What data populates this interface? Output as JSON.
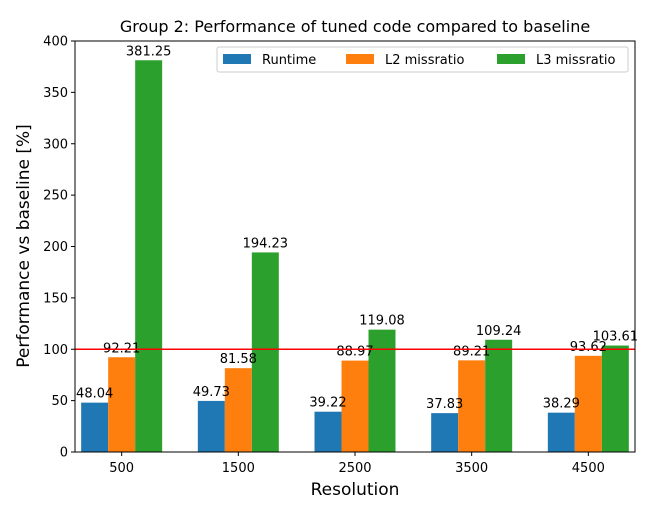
{
  "chart_data": {
    "type": "bar",
    "title": "Group 2: Performance of tuned code compared to baseline",
    "xlabel": "Resolution",
    "ylabel": "Performance vs baseline [%]",
    "categories": [
      "500",
      "1500",
      "2500",
      "3500",
      "4500"
    ],
    "ylim": [
      0,
      400
    ],
    "yticks": [
      0,
      50,
      100,
      150,
      200,
      250,
      300,
      350,
      400
    ],
    "series": [
      {
        "name": "Runtime",
        "color": "#1f77b4",
        "values": [
          48.04,
          49.73,
          39.22,
          37.83,
          38.29
        ],
        "labels": [
          "48.04",
          "49.73",
          "39.22",
          "37.83",
          "38.29"
        ]
      },
      {
        "name": "L2 missratio",
        "color": "#ff7f0e",
        "values": [
          92.21,
          81.58,
          88.97,
          89.21,
          93.62
        ],
        "labels": [
          "92.21",
          "81.58",
          "88.97",
          "89.21",
          "93.62"
        ]
      },
      {
        "name": "L3 missratio",
        "color": "#2ca02c",
        "values": [
          381.25,
          194.23,
          119.08,
          109.24,
          103.61
        ],
        "labels": [
          "381.25",
          "194.23",
          "119.08",
          "109.24",
          "103.61"
        ]
      }
    ],
    "reference_line": {
      "value": 100,
      "color": "#ff0000"
    },
    "legend": {
      "position": "top-right",
      "columns": 3
    },
    "grid": false
  }
}
